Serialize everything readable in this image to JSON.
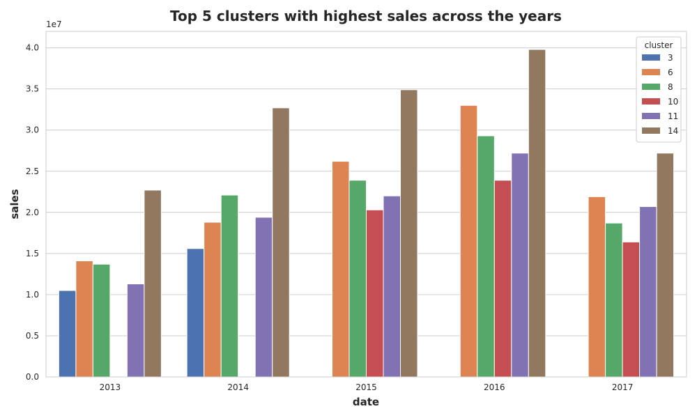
{
  "chart_data": {
    "type": "bar",
    "title": "Top 5 clusters with highest sales across the years",
    "xlabel": "date",
    "ylabel": "sales",
    "y_offset_label": "1e7",
    "y_scale_factor": 10000000,
    "ylim": [
      0,
      4.2
    ],
    "yticks": [
      "0.0",
      "0.5",
      "1.0",
      "1.5",
      "2.0",
      "2.5",
      "3.0",
      "3.5",
      "4.0"
    ],
    "grid": true,
    "legend_title": "cluster",
    "legend_position": "top-right",
    "categories": [
      "2013",
      "2014",
      "2015",
      "2016",
      "2017"
    ],
    "series": [
      {
        "name": "3",
        "color": "#4c72b0",
        "values": [
          1.05,
          1.56,
          null,
          null,
          null
        ]
      },
      {
        "name": "6",
        "color": "#dd8452",
        "values": [
          1.41,
          1.88,
          2.62,
          3.3,
          2.19
        ]
      },
      {
        "name": "8",
        "color": "#55a868",
        "values": [
          1.37,
          2.21,
          2.39,
          2.93,
          1.87
        ]
      },
      {
        "name": "10",
        "color": "#c44e52",
        "values": [
          null,
          null,
          2.03,
          2.39,
          1.64
        ]
      },
      {
        "name": "11",
        "color": "#8172b3",
        "values": [
          1.13,
          1.94,
          2.2,
          2.72,
          2.07
        ]
      },
      {
        "name": "14",
        "color": "#937860",
        "values": [
          2.27,
          3.27,
          3.49,
          3.98,
          2.72
        ]
      }
    ]
  }
}
